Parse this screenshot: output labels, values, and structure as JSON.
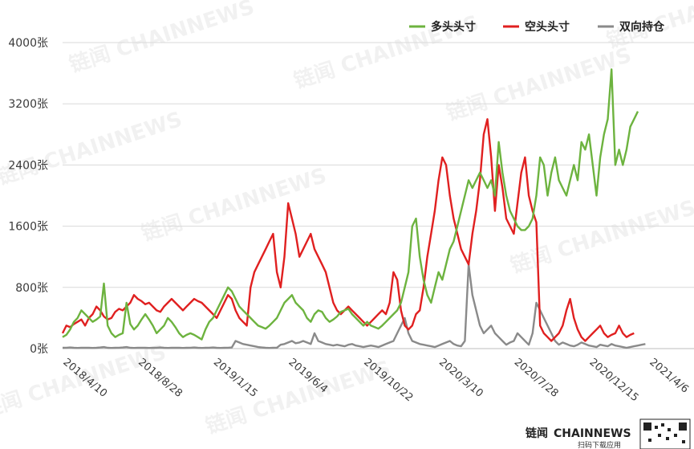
{
  "chart_data": {
    "type": "line",
    "title": "",
    "xlabel": "",
    "ylabel": "",
    "ylim": [
      0,
      4000
    ],
    "y_ticks": [
      0,
      800,
      1600,
      2400,
      3200,
      4000
    ],
    "y_tick_labels": [
      "0张",
      "800张",
      "1600张",
      "2400张",
      "3200张",
      "4000张"
    ],
    "x_tick_labels": [
      "2018/4/10",
      "2018/8/28",
      "2019/1/15",
      "2019/6/4",
      "2019/10/22",
      "2020/3/10",
      "2020/7/28",
      "2020/12/15",
      "2021/4/6"
    ],
    "x_tick_index": [
      0,
      20,
      40,
      60,
      80,
      100,
      120,
      140,
      156
    ],
    "grid": "horizontal",
    "legend_position": "top-right",
    "series": [
      {
        "name": "多头头寸",
        "color": "#6db33f",
        "values": [
          150,
          180,
          250,
          350,
          400,
          500,
          450,
          400,
          350,
          380,
          420,
          850,
          300,
          200,
          150,
          180,
          200,
          600,
          320,
          250,
          300,
          380,
          450,
          380,
          300,
          200,
          250,
          300,
          400,
          350,
          280,
          200,
          150,
          180,
          200,
          180,
          150,
          120,
          250,
          350,
          400,
          500,
          600,
          700,
          800,
          750,
          650,
          550,
          500,
          450,
          400,
          350,
          300,
          280,
          260,
          300,
          350,
          400,
          500,
          600,
          650,
          700,
          600,
          550,
          500,
          400,
          350,
          450,
          500,
          480,
          400,
          350,
          380,
          420,
          480,
          500,
          520,
          450,
          400,
          350,
          300,
          350,
          300,
          280,
          260,
          300,
          350,
          400,
          450,
          500,
          600,
          800,
          1000,
          1600,
          1700,
          1200,
          900,
          700,
          600,
          800,
          1000,
          900,
          1100,
          1300,
          1400,
          1600,
          1800,
          2000,
          2200,
          2100,
          2200,
          2300,
          2200,
          2100,
          2200,
          2000,
          2700,
          2300,
          2000,
          1800,
          1700,
          1600,
          1550,
          1550,
          1600,
          1700,
          2000,
          2500,
          2400,
          2000,
          2300,
          2500,
          2200,
          2100,
          2000,
          2200,
          2400,
          2200,
          2700,
          2600,
          2800,
          2400,
          2000,
          2500,
          2800,
          3000,
          3650,
          2400,
          2600,
          2400,
          2600,
          2900,
          3000,
          3100
        ]
      },
      {
        "name": "空头头寸",
        "color": "#e02020",
        "values": [
          200,
          300,
          280,
          320,
          350,
          380,
          300,
          400,
          450,
          550,
          500,
          420,
          380,
          400,
          480,
          520,
          500,
          550,
          600,
          700,
          650,
          620,
          580,
          600,
          550,
          500,
          480,
          550,
          600,
          650,
          600,
          550,
          500,
          550,
          600,
          650,
          620,
          600,
          550,
          500,
          450,
          400,
          500,
          600,
          700,
          650,
          500,
          400,
          350,
          300,
          800,
          1000,
          1100,
          1200,
          1300,
          1400,
          1500,
          1000,
          800,
          1200,
          1900,
          1700,
          1500,
          1200,
          1300,
          1400,
          1500,
          1300,
          1200,
          1100,
          1000,
          800,
          600,
          500,
          450,
          500,
          550,
          500,
          450,
          400,
          350,
          300,
          350,
          400,
          450,
          500,
          450,
          600,
          1000,
          900,
          500,
          300,
          250,
          300,
          450,
          500,
          800,
          1200,
          1500,
          1800,
          2200,
          2500,
          2400,
          2000,
          1700,
          1500,
          1300,
          1200,
          1100,
          1500,
          1800,
          2200,
          2800,
          3000,
          2500,
          1800,
          2400,
          2100,
          1700,
          1600,
          1500,
          1900,
          2300,
          2500,
          2000,
          1800,
          1650,
          300,
          200,
          150,
          100,
          150,
          200,
          300,
          500,
          650,
          400,
          250,
          150,
          100,
          150,
          200,
          250,
          300,
          200,
          150,
          180,
          200,
          300,
          200,
          150,
          180,
          200
        ]
      },
      {
        "name": "双向持仓",
        "color": "#8a8a8a",
        "values": [
          10,
          12,
          15,
          10,
          8,
          10,
          12,
          10,
          8,
          10,
          15,
          20,
          10,
          8,
          10,
          12,
          15,
          20,
          10,
          8,
          10,
          12,
          10,
          8,
          10,
          12,
          15,
          10,
          8,
          10,
          12,
          10,
          8,
          10,
          12,
          15,
          10,
          8,
          10,
          12,
          15,
          10,
          8,
          10,
          12,
          15,
          100,
          80,
          60,
          50,
          40,
          30,
          20,
          15,
          10,
          8,
          10,
          12,
          50,
          60,
          80,
          100,
          70,
          80,
          100,
          80,
          60,
          200,
          100,
          80,
          60,
          50,
          40,
          50,
          40,
          30,
          50,
          60,
          40,
          30,
          20,
          30,
          40,
          30,
          20,
          40,
          60,
          80,
          100,
          200,
          300,
          400,
          200,
          100,
          80,
          60,
          50,
          40,
          30,
          20,
          40,
          60,
          80,
          100,
          60,
          40,
          30,
          100,
          1100,
          700,
          500,
          300,
          200,
          250,
          300,
          200,
          150,
          100,
          50,
          80,
          100,
          200,
          150,
          100,
          50,
          200,
          600,
          500,
          400,
          300,
          200,
          100,
          50,
          80,
          60,
          40,
          30,
          50,
          80,
          60,
          40,
          30,
          20,
          50,
          40,
          30,
          60,
          40,
          30,
          20,
          10,
          20,
          30,
          40,
          50,
          60
        ]
      }
    ]
  },
  "watermark": {
    "text": "链闻 CHAINNEWS"
  },
  "brand": {
    "name": "链闻",
    "name_en": "CHAINNEWS",
    "subtitle": "扫码下载应用"
  }
}
